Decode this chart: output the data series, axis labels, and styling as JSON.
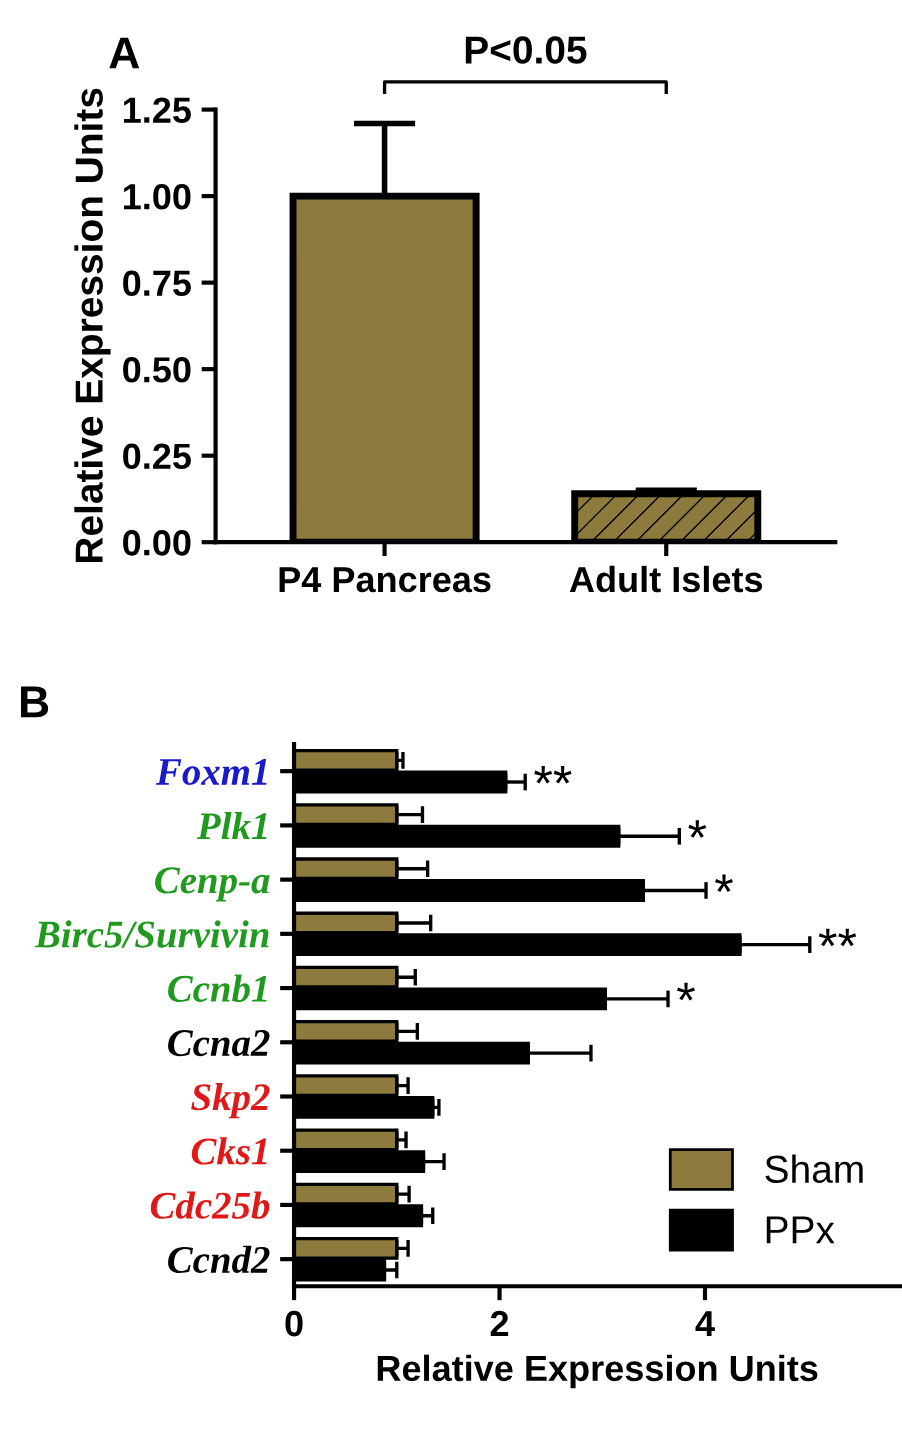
{
  "chart_data": [
    {
      "type": "bar",
      "title": "A",
      "ylabel": "Relative Expression Units",
      "categories": [
        "P4 Pancreas",
        "Adult Islets"
      ],
      "values": [
        1.0,
        0.14
      ],
      "colors": [
        "#8c7b3c",
        "#8c7b3c"
      ],
      "errors": [
        [
          1.0,
          1.21
        ],
        [
          0.14,
          0.15
        ]
      ],
      "ylim": [
        0,
        1.25
      ],
      "yticks": [
        {
          "value": 0,
          "label": "0.00"
        },
        {
          "value": 0.25,
          "label": "0.25"
        },
        {
          "value": 0.5,
          "label": "0.50"
        },
        {
          "value": 0.75,
          "label": "0.75"
        },
        {
          "value": 1.0,
          "label": "1.00"
        },
        {
          "value": 1.25,
          "label": "1.25"
        }
      ],
      "annotations": [
        "P<0.05"
      ],
      "grid": false
    },
    {
      "type": "bar",
      "orientation": "horizontal",
      "title": "B",
      "xlabel": "Relative Expression Units",
      "categories": [
        "Foxm1",
        "Plk1",
        "Cenp-a",
        "Birc5/Survivin",
        "Ccnb1",
        "Ccna2",
        "Skp2",
        "Cks1",
        "Cdc25b",
        "Ccnd2"
      ],
      "series": [
        {
          "name": "Sham",
          "color": "#8c7b3c",
          "values": [
            1.0,
            1.0,
            1.0,
            1.0,
            1.0,
            1.0,
            1.0,
            1.0,
            1.0,
            1.0
          ],
          "errors": [
            [
              1.0,
              1.06
            ],
            [
              1.0,
              1.25
            ],
            [
              1.0,
              1.3
            ],
            [
              1.0,
              1.33
            ],
            [
              1.0,
              1.18
            ],
            [
              1.0,
              1.2
            ],
            [
              1.0,
              1.11
            ],
            [
              1.0,
              1.09
            ],
            [
              1.0,
              1.12
            ],
            [
              1.0,
              1.11
            ]
          ]
        },
        {
          "name": "PPx",
          "color": "#000000",
          "values": [
            2.06,
            3.16,
            3.4,
            4.34,
            3.03,
            2.28,
            1.35,
            1.26,
            1.24,
            0.88
          ],
          "errors": [
            [
              2.06,
              2.25
            ],
            [
              3.16,
              3.75
            ],
            [
              3.4,
              4.01
            ],
            [
              4.34,
              5.02
            ],
            [
              3.03,
              3.64
            ],
            [
              2.28,
              2.89
            ],
            [
              1.35,
              1.41
            ],
            [
              1.26,
              1.46
            ],
            [
              1.24,
              1.35
            ],
            [
              0.88,
              1.0
            ]
          ]
        }
      ],
      "xlim": [
        0,
        5.9
      ],
      "xticks": [
        0,
        2,
        4
      ],
      "annotations": [
        {
          "text": "**",
          "x": 2.25,
          "y": "Foxm1"
        },
        {
          "text": "*",
          "x": 3.75,
          "y": "Plk1"
        },
        {
          "text": "*",
          "x": 4.01,
          "y": "Cenp-a"
        },
        {
          "text": "**",
          "x": 5.02,
          "y": "Birc5/Survivin"
        },
        {
          "text": "*",
          "x": 3.64,
          "y": "Ccnb1"
        }
      ],
      "grid": false,
      "legend": "bottom right"
    }
  ]
}
